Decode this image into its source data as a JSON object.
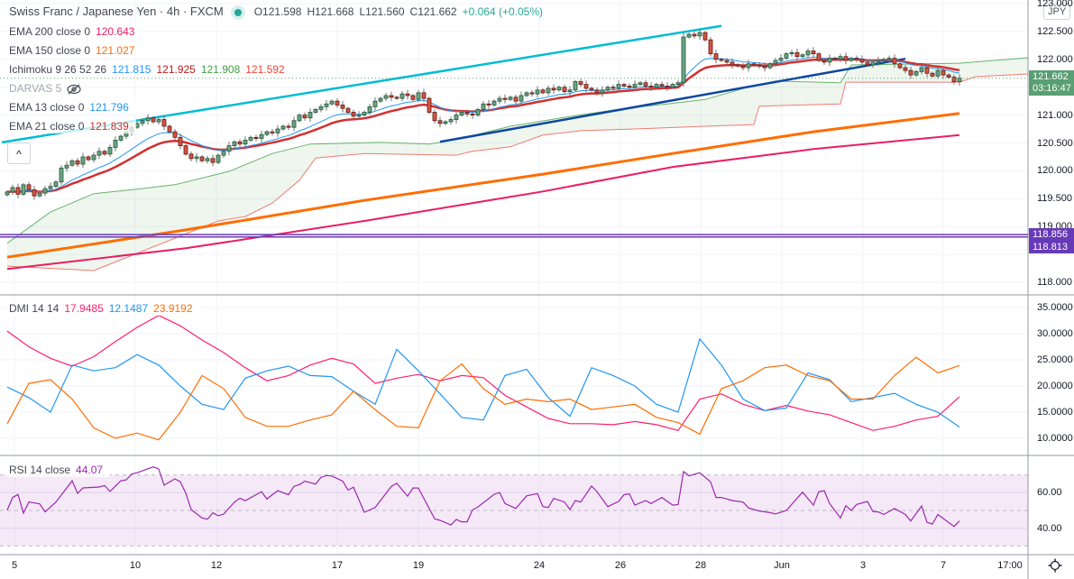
{
  "header": {
    "symbol": "Swiss Franc / Japanese Yen · 4h · FXCM",
    "open": "O121.598",
    "high": "H121.668",
    "low": "L121.560",
    "close": "C121.662",
    "change": "+0.064 (+0.05%)"
  },
  "legend": {
    "ema200": {
      "label": "EMA 200 close 0",
      "value": "120.643"
    },
    "ema150": {
      "label": "EMA 150 close 0",
      "value": "121.027"
    },
    "ichimoku": {
      "label": "Ichimoku 9 26 52 26",
      "v1": "121.815",
      "v2": "121.925",
      "v3": "121.908",
      "v4": "121.592"
    },
    "darvas": {
      "label": "DARVAS 5",
      "icon": "eye-hidden-icon"
    },
    "ema13": {
      "label": "EMA 13 close 0",
      "value": "121.796"
    },
    "ema21": {
      "label": "EMA 21 close 0",
      "value": "121.839"
    },
    "collapse_icon": "^",
    "dmi": {
      "label": "DMI 14 14",
      "adx": "17.9485",
      "plus_di": "12.1487",
      "minus_di": "23.9192"
    },
    "rsi": {
      "label": "RSI 14 close",
      "value": "44.07"
    }
  },
  "price_axis": {
    "currency": "JPY",
    "ticks": [
      "123.000",
      "122.500",
      "122.000",
      "121.000",
      "120.500",
      "120.000",
      "119.500",
      "119.000",
      "118.000"
    ],
    "last_price": "121.662",
    "countdown": "03:16:47",
    "levels": [
      "118.856",
      "118.813"
    ]
  },
  "dmi_axis": {
    "ticks": [
      "35.0000",
      "30.0000",
      "25.0000",
      "20.0000",
      "15.0000",
      "10.0000"
    ]
  },
  "rsi_axis": {
    "ticks": [
      "60.00",
      "40.00"
    ]
  },
  "time_axis": {
    "labels": [
      "5",
      "10",
      "12",
      "17",
      "19",
      "24",
      "26",
      "28",
      "Jun",
      "3",
      "7",
      "17:00"
    ]
  },
  "colors": {
    "up": "#6ba583",
    "up_border": "#225437",
    "down": "#d75442",
    "down_border": "#5b1a13",
    "ema200": "#e91e63",
    "ema150": "#ff6d00",
    "ema13": "#2196f3",
    "ema21": "#d32f2f",
    "span_a": "#43a047",
    "span_b": "#f44336",
    "cloud": "#43a047",
    "trend_upper": "#00bcd4",
    "trend_lower": "#0d47a1",
    "levels": "#673ab7",
    "adx": "#ff1f6c",
    "plus_di": "#2196f3",
    "minus_di": "#ff6d00",
    "rsi": "#9c27b0",
    "rsi_band": "#e1bee7",
    "last_price_badge": "#5a9e74"
  },
  "chart_data": [
    {
      "type": "candlestick",
      "title": "Swiss Franc / Japanese Yen · 4h · FXCM",
      "ylim": [
        117.8,
        123.0
      ],
      "closes": [
        119.62,
        119.7,
        119.58,
        119.75,
        119.66,
        119.55,
        119.6,
        119.68,
        119.72,
        119.8,
        120.05,
        120.1,
        120.18,
        120.12,
        120.25,
        120.2,
        120.28,
        120.35,
        120.3,
        120.42,
        120.55,
        120.62,
        120.7,
        120.78,
        120.85,
        120.9,
        120.95,
        120.88,
        120.92,
        120.8,
        120.7,
        120.6,
        120.45,
        120.3,
        120.22,
        120.25,
        120.18,
        120.22,
        120.15,
        120.28,
        120.35,
        120.45,
        120.52,
        120.48,
        120.55,
        120.6,
        120.58,
        120.65,
        120.7,
        120.68,
        120.75,
        120.8,
        120.78,
        120.9,
        121.0,
        120.95,
        121.05,
        121.1,
        121.15,
        121.2,
        121.25,
        121.18,
        121.12,
        121.05,
        120.98,
        121.0,
        121.05,
        121.15,
        121.25,
        121.3,
        121.35,
        121.32,
        121.3,
        121.38,
        121.35,
        121.28,
        121.4,
        121.3,
        121.05,
        120.9,
        120.85,
        120.88,
        120.92,
        121.0,
        121.05,
        121.02,
        121.0,
        121.1,
        121.2,
        121.18,
        121.25,
        121.3,
        121.28,
        121.32,
        121.25,
        121.35,
        121.4,
        121.38,
        121.45,
        121.4,
        121.48,
        121.45,
        121.5,
        121.42,
        121.45,
        121.6,
        121.55,
        121.48,
        121.45,
        121.4,
        121.45,
        121.5,
        121.48,
        121.55,
        121.52,
        121.5,
        121.55,
        121.58,
        121.52,
        121.5,
        121.55,
        121.52,
        121.5,
        121.55,
        121.58,
        122.4,
        122.45,
        122.42,
        122.48,
        122.35,
        122.1,
        122.0,
        121.98,
        121.95,
        121.9,
        121.88,
        121.85,
        121.92,
        121.9,
        121.88,
        121.85,
        121.92,
        121.98,
        122.02,
        122.1,
        122.12,
        122.05,
        122.08,
        122.15,
        122.1,
        121.98,
        121.95,
        122.02,
        122.0,
        122.05,
        121.98,
        122.02,
        122.0,
        121.95,
        121.9,
        121.95,
        121.98,
        122.0,
        122.02,
        121.92,
        121.85,
        121.8,
        121.72,
        121.78,
        121.85,
        121.75,
        121.7,
        121.8,
        121.72,
        121.68,
        121.598,
        121.662
      ],
      "ema150": [
        [
          0,
          118.45
        ],
        [
          33,
          118.94
        ],
        [
          66,
          119.47
        ],
        [
          99,
          119.94
        ],
        [
          123,
          120.31
        ],
        [
          149,
          120.7
        ],
        [
          176,
          121.03
        ]
      ],
      "ema200": [
        [
          0,
          118.24
        ],
        [
          33,
          118.61
        ],
        [
          66,
          119.1
        ],
        [
          99,
          119.63
        ],
        [
          123,
          120.07
        ],
        [
          149,
          120.39
        ],
        [
          176,
          120.64
        ]
      ],
      "ichimoku_span_a": [
        [
          0,
          118.7
        ],
        [
          8,
          119.26
        ],
        [
          16,
          119.59
        ],
        [
          24,
          119.67
        ],
        [
          31,
          119.75
        ],
        [
          41,
          119.99
        ],
        [
          49,
          120.31
        ],
        [
          56,
          120.48
        ],
        [
          69,
          120.51
        ],
        [
          78,
          120.48
        ],
        [
          83,
          120.56
        ],
        [
          93,
          120.8
        ],
        [
          103,
          120.96
        ],
        [
          114,
          121.12
        ],
        [
          122,
          121.2
        ],
        [
          129,
          121.28
        ],
        [
          138,
          121.53
        ],
        [
          142,
          121.61
        ],
        [
          154,
          121.58
        ],
        [
          156,
          121.9
        ],
        [
          176,
          121.93
        ],
        [
          189,
          122.03
        ]
      ],
      "ichimoku_span_b": [
        [
          0,
          118.29
        ],
        [
          16,
          118.21
        ],
        [
          39,
          119.1
        ],
        [
          44,
          119.18
        ],
        [
          49,
          119.42
        ],
        [
          54,
          119.83
        ],
        [
          57,
          120.23
        ],
        [
          66,
          120.31
        ],
        [
          83,
          120.28
        ],
        [
          86,
          120.35
        ],
        [
          93,
          120.43
        ],
        [
          99,
          120.64
        ],
        [
          106,
          120.72
        ],
        [
          116,
          120.75
        ],
        [
          129,
          120.8
        ],
        [
          138,
          120.83
        ],
        [
          139,
          121.16
        ],
        [
          154,
          121.2
        ],
        [
          155,
          121.59
        ],
        [
          176,
          121.59
        ],
        [
          179,
          121.69
        ],
        [
          189,
          121.74
        ]
      ],
      "trendlines": [
        {
          "name": "upper",
          "from": [
            -1,
            120.51
          ],
          "to": [
            132,
            122.6
          ]
        },
        {
          "name": "lower",
          "from": [
            80,
            120.52
          ],
          "to": [
            166,
            122.01
          ]
        }
      ],
      "horizontal_levels": [
        118.856,
        118.813
      ]
    },
    {
      "type": "line",
      "title": "DMI 14 14",
      "ylim": [
        8,
        37
      ],
      "series": [
        {
          "name": "ADX",
          "values": [
            30.5,
            27.5,
            25.3,
            23.8,
            25.6,
            28.5,
            31.2,
            33.5,
            31.5,
            28.8,
            26.4,
            23.5,
            21.0,
            22.0,
            24.0,
            25.3,
            24.2,
            20.5,
            21.5,
            22.2,
            21.0,
            22.0,
            21.6,
            18.2,
            16.0,
            13.8,
            12.8,
            12.8,
            12.6,
            13.2,
            12.6,
            11.5,
            17.5,
            18.5,
            16.5,
            15.3,
            16.3,
            15.2,
            14.5,
            13.0,
            11.5,
            12.3,
            13.5,
            14.2,
            17.9485
          ]
        },
        {
          "name": "+DI",
          "values": [
            19.8,
            17.8,
            15.0,
            24.0,
            22.9,
            23.5,
            26.0,
            24.0,
            20.0,
            16.5,
            15.5,
            21.5,
            22.9,
            23.8,
            22.0,
            21.8,
            19.0,
            16.5,
            27.0,
            22.9,
            18.5,
            14.0,
            13.5,
            22.0,
            23.2,
            17.8,
            14.2,
            23.5,
            22.0,
            20.0,
            16.5,
            15.0,
            29.0,
            24.0,
            17.5,
            15.3,
            15.8,
            22.5,
            21.2,
            17.0,
            17.8,
            18.6,
            16.5,
            15.0,
            12.1487
          ]
        },
        {
          "name": "-DI",
          "values": [
            12.8,
            20.5,
            21.2,
            17.5,
            12.0,
            10.0,
            11.0,
            9.7,
            15.0,
            22.0,
            19.5,
            14.0,
            12.3,
            12.3,
            13.5,
            14.5,
            19.0,
            15.5,
            12.3,
            12.0,
            21.0,
            24.2,
            19.5,
            16.5,
            17.5,
            17.0,
            17.5,
            15.5,
            16.0,
            16.5,
            14.0,
            13.0,
            10.8,
            19.5,
            21.0,
            23.5,
            24.0,
            22.0,
            21.0,
            17.5,
            17.5,
            22.0,
            25.5,
            22.5,
            23.9192
          ]
        }
      ]
    },
    {
      "type": "line",
      "title": "RSI 14 close",
      "ylim": [
        25,
        80
      ],
      "bands": [
        30,
        50,
        70
      ],
      "points": [
        [
          0,
          50.2
        ],
        [
          1,
          57.3
        ],
        [
          2,
          59
        ],
        [
          3,
          48.5
        ],
        [
          4,
          54.7
        ],
        [
          6,
          53.7
        ],
        [
          7,
          49.2
        ],
        [
          9,
          54.7
        ],
        [
          12,
          66.7
        ],
        [
          13,
          59.6
        ],
        [
          14,
          62.7
        ],
        [
          17,
          63.2
        ],
        [
          18,
          64
        ],
        [
          19,
          60.7
        ],
        [
          21,
          66.7
        ],
        [
          22,
          67.2
        ],
        [
          23,
          70.5
        ],
        [
          24,
          71.2
        ],
        [
          27,
          74.5
        ],
        [
          28,
          73.3
        ],
        [
          29,
          64.2
        ],
        [
          31,
          67.8
        ],
        [
          32,
          66.1
        ],
        [
          33,
          59.8
        ],
        [
          34,
          50.5
        ],
        [
          36,
          45.8
        ],
        [
          37,
          45.1
        ],
        [
          38,
          48.7
        ],
        [
          39,
          47
        ],
        [
          40,
          47.9
        ],
        [
          42,
          54.7
        ],
        [
          43,
          56.9
        ],
        [
          44,
          55.5
        ],
        [
          46,
          58.9
        ],
        [
          47,
          60.6
        ],
        [
          48,
          56.4
        ],
        [
          49,
          58.9
        ],
        [
          50,
          61.1
        ],
        [
          52,
          58.9
        ],
        [
          53,
          63.6
        ],
        [
          54,
          64.5
        ],
        [
          55,
          66.5
        ],
        [
          57,
          64.8
        ],
        [
          58,
          68.7
        ],
        [
          59,
          69.7
        ],
        [
          60,
          69.4
        ],
        [
          62,
          66.5
        ],
        [
          63,
          61.4
        ],
        [
          64,
          63.1
        ],
        [
          66,
          49
        ],
        [
          68,
          51.6
        ],
        [
          71,
          63.6
        ],
        [
          72,
          65.3
        ],
        [
          74,
          58
        ],
        [
          75,
          62.7
        ],
        [
          76,
          62.6
        ],
        [
          79,
          45.3
        ],
        [
          80,
          44.4
        ],
        [
          82,
          41.9
        ],
        [
          83,
          44.9
        ],
        [
          84,
          43.6
        ],
        [
          85,
          43.6
        ],
        [
          86,
          50.3
        ],
        [
          87,
          52
        ],
        [
          90,
          59.1
        ],
        [
          91,
          60.1
        ],
        [
          92,
          53.9
        ],
        [
          94,
          51.1
        ],
        [
          96,
          58.2
        ],
        [
          98,
          59.5
        ],
        [
          99,
          52.2
        ],
        [
          100,
          51.7
        ],
        [
          101,
          56.8
        ],
        [
          103,
          54.7
        ],
        [
          104,
          50.5
        ],
        [
          105,
          55.6
        ],
        [
          106,
          54.7
        ],
        [
          108,
          63.7
        ],
        [
          109,
          60.6
        ],
        [
          111,
          52.2
        ],
        [
          113,
          55.1
        ],
        [
          114,
          58.9
        ],
        [
          115,
          59.3
        ],
        [
          116,
          53
        ],
        [
          118,
          55.6
        ],
        [
          119,
          53.9
        ],
        [
          121,
          57.3
        ],
        [
          123,
          53
        ],
        [
          124,
          53.3
        ],
        [
          125,
          71.9
        ],
        [
          126,
          69.5
        ],
        [
          128,
          71.2
        ],
        [
          130,
          66.1
        ],
        [
          131,
          57.3
        ],
        [
          132,
          57.3
        ],
        [
          134,
          55.6
        ],
        [
          136,
          54.7
        ],
        [
          137,
          51.4
        ],
        [
          139,
          49.7
        ],
        [
          141,
          48.8
        ],
        [
          142,
          48
        ],
        [
          144,
          50
        ],
        [
          147,
          60.3
        ],
        [
          149,
          53
        ],
        [
          150,
          60.6
        ],
        [
          151,
          61.1
        ],
        [
          152,
          53.9
        ],
        [
          154,
          45.8
        ],
        [
          155,
          52.7
        ],
        [
          156,
          50
        ],
        [
          157,
          53.4
        ],
        [
          159,
          55.1
        ],
        [
          160,
          49.4
        ],
        [
          161,
          49.2
        ],
        [
          162,
          47.7
        ],
        [
          164,
          51.1
        ],
        [
          166,
          47.7
        ],
        [
          167,
          44.1
        ],
        [
          169,
          52.5
        ],
        [
          170,
          43.3
        ],
        [
          171,
          42.4
        ],
        [
          172,
          47.7
        ],
        [
          175,
          41
        ],
        [
          176,
          44.07
        ]
      ]
    }
  ]
}
